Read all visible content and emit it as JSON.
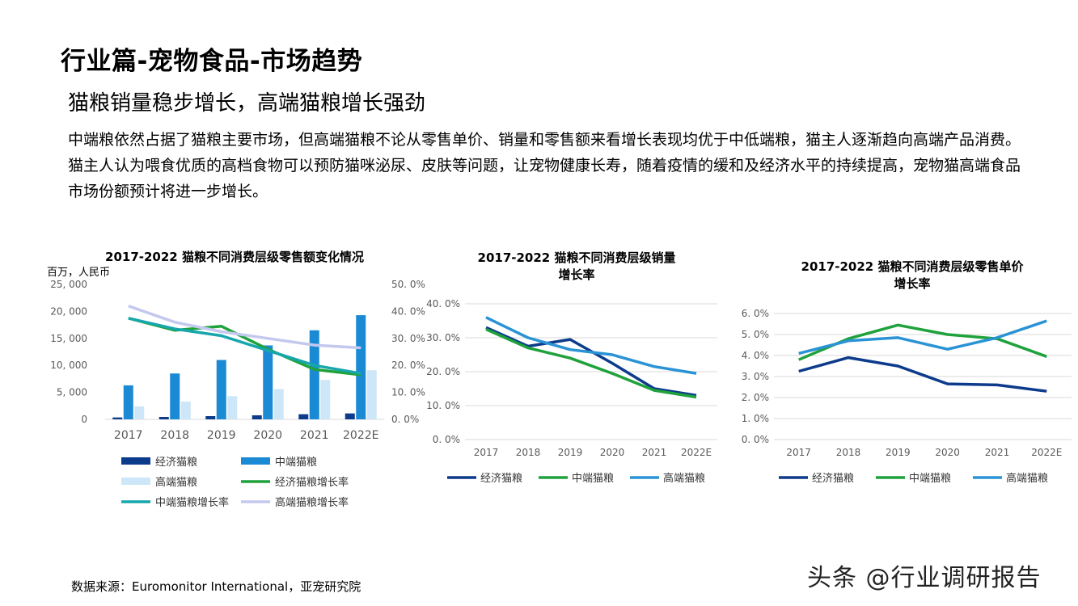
{
  "page": {
    "title": "行业篇-宠物食品-市场趋势",
    "subtitle": "猫粮销量稳步增长，高端猫粮增长强劲",
    "body": "中端粮依然占据了猫粮主要市场，但高端猫粮不论从零售单价、销量和零售额来看增长表现均优于中低端粮，猫主人逐渐趋向高端产品消费。猫主人认为喂食优质的高档食物可以预防猫咪泌尿、皮肤等问题，让宠物健康长寿，随着疫情的缓和及经济水平的持续提高，宠物猫高端食品市场份额预计将进一步增长。",
    "source": "数据来源：Euromonitor International，亚宠研究院",
    "watermark": "头条 @行业调研报告"
  },
  "colors": {
    "economy": "#0d3b8c",
    "mid_bar": "#1a8ad4",
    "premium_bar": "#cde7f8",
    "economy_growth": "#1fa23c",
    "mid_growth": "#17a6ac",
    "premium_growth": "#c3c8ee",
    "green": "#1fa23c",
    "blue": "#2a93d5",
    "grid": "#d9d9d9",
    "axis_text": "#595959"
  },
  "chart_data": [
    {
      "type": "bar",
      "title": "2017-2022  猫粮不同消费层级零售额变化情况",
      "ylabel": "百万，人民币",
      "categories": [
        "2017",
        "2018",
        "2019",
        "2020",
        "2021",
        "2022E"
      ],
      "ylim": [
        0,
        25000
      ],
      "yticks": [
        "0",
        "5, 000",
        "10, 000",
        "15, 000",
        "20, 000",
        "25, 000"
      ],
      "y2lim": [
        0,
        50
      ],
      "y2ticks": [
        "0. 0%",
        "10. 0%",
        "20. 0%",
        "30. 0%",
        "40. 0%",
        "50. 0%"
      ],
      "series": [
        {
          "name": "经济猫粮",
          "kind": "bar",
          "values": [
            350,
            450,
            600,
            750,
            950,
            1100
          ]
        },
        {
          "name": "中端猫粮",
          "kind": "bar",
          "values": [
            6300,
            8500,
            11000,
            13700,
            16500,
            19300
          ]
        },
        {
          "name": "高端猫粮",
          "kind": "bar",
          "values": [
            2400,
            3300,
            4300,
            5600,
            7300,
            9100
          ]
        },
        {
          "name": "经济猫粮增长率",
          "kind": "line",
          "axis": "right",
          "values": [
            37.5,
            33.0,
            34.5,
            26.0,
            18.5,
            16.5
          ]
        },
        {
          "name": "中端猫粮增长率",
          "kind": "line",
          "axis": "right",
          "values": [
            37.5,
            33.5,
            31.0,
            25.5,
            20.0,
            17.0
          ]
        },
        {
          "name": "高端猫粮增长率",
          "kind": "line",
          "axis": "right",
          "values": [
            42.0,
            36.0,
            32.5,
            30.0,
            27.5,
            26.5
          ]
        }
      ],
      "legend": "bottom"
    },
    {
      "type": "line",
      "title": [
        "2017-2022  猫粮不同消费层级销量",
        "增长率"
      ],
      "categories": [
        "2017",
        "2018",
        "2019",
        "2020",
        "2021",
        "2022E"
      ],
      "ylim": [
        0,
        40
      ],
      "yticks": [
        "0. 0%",
        "10. 0%",
        "20. 0%",
        "30. 0%",
        "40. 0%"
      ],
      "series": [
        {
          "name": "经济猫粮",
          "values": [
            33.0,
            27.5,
            29.5,
            22.5,
            15.0,
            13.0
          ]
        },
        {
          "name": "中端猫粮",
          "values": [
            32.5,
            27.0,
            24.0,
            19.5,
            14.5,
            12.5
          ]
        },
        {
          "name": "高端猫粮",
          "values": [
            36.0,
            30.0,
            26.5,
            25.0,
            21.5,
            19.5
          ]
        }
      ],
      "legend": "bottom"
    },
    {
      "type": "line",
      "title": [
        "2017-2022  猫粮不同消费层级零售单价",
        "增长率"
      ],
      "categories": [
        "2017",
        "2018",
        "2019",
        "2020",
        "2021",
        "2022E"
      ],
      "ylim": [
        0,
        6
      ],
      "yticks": [
        "0. 0%",
        "1. 0%",
        "2. 0%",
        "3. 0%",
        "4. 0%",
        "5. 0%",
        "6. 0%"
      ],
      "series": [
        {
          "name": "经济猫粮",
          "values": [
            3.25,
            3.9,
            3.5,
            2.65,
            2.6,
            2.3
          ]
        },
        {
          "name": "中端猫粮",
          "values": [
            3.8,
            4.8,
            5.45,
            5.0,
            4.8,
            3.95
          ]
        },
        {
          "name": "高端猫粮",
          "values": [
            4.1,
            4.7,
            4.85,
            4.3,
            4.85,
            5.65
          ]
        }
      ],
      "legend": "bottom"
    }
  ]
}
